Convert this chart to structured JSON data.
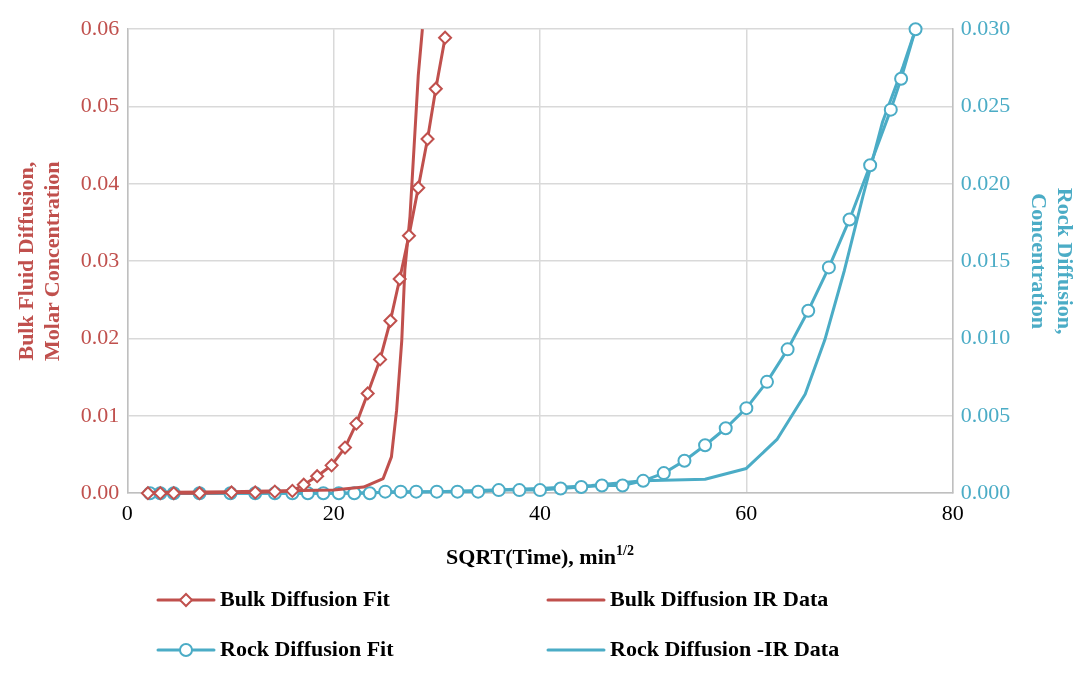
{
  "chart_data": {
    "type": "line",
    "xlabel": "SQRT(Time), min$^{1/2}$",
    "ylabel": "Bulk Fluid Diffusion, Molar Concentration",
    "y2label": "Rock Diffusion, Concentration",
    "xlim": [
      0,
      80
    ],
    "xticks": [
      0,
      20,
      40,
      60,
      80
    ],
    "ylim": [
      0,
      0.06
    ],
    "yticks": [
      {
        "value": 0,
        "label": "0.00"
      },
      {
        "value": 0.01,
        "label": "0.01"
      },
      {
        "value": 0.02,
        "label": "0.02"
      },
      {
        "value": 0.03,
        "label": "0.03"
      },
      {
        "value": 0.04,
        "label": "0.04"
      },
      {
        "value": 0.05,
        "label": "0.05"
      },
      {
        "value": 0.06,
        "label": "0.06"
      }
    ],
    "y2lim": [
      0,
      0.03
    ],
    "y2ticks": [
      {
        "value": 0,
        "label": "0.000"
      },
      {
        "value": 0.005,
        "label": "0.005"
      },
      {
        "value": 0.01,
        "label": "0.010"
      },
      {
        "value": 0.015,
        "label": "0.015"
      },
      {
        "value": 0.02,
        "label": "0.020"
      },
      {
        "value": 0.025,
        "label": "0.025"
      },
      {
        "value": 0.03,
        "label": "0.030"
      }
    ],
    "grid": true,
    "legend": "bottom",
    "series": [
      {
        "name": "Bulk Diffusion Fit",
        "color": "#c0504d",
        "marker": "diamond",
        "x": [
          2.0,
          3.2,
          4.5,
          7.0,
          10.1,
          12.4,
          14.3,
          16.0,
          17.1,
          18.4,
          19.8,
          21.1,
          22.2,
          23.3,
          24.5,
          25.5,
          26.4,
          27.3,
          28.2,
          29.1,
          29.9,
          30.8
        ],
        "values": [
          0,
          0,
          0,
          0,
          0.0001,
          0.0001,
          0.0002,
          0.0003,
          0.0011,
          0.0022,
          0.0036,
          0.0059,
          0.009,
          0.0129,
          0.0173,
          0.0223,
          0.0277,
          0.0333,
          0.0395,
          0.0458,
          0.0523,
          0.0589
        ]
      },
      {
        "name": "Bulk Diffusion IR Data",
        "color": "#c0504d",
        "marker": "none",
        "x": [
          2,
          10,
          20,
          22.9,
          24.8,
          25.6,
          26.1,
          26.6,
          26.9,
          27.4,
          27.8,
          28.2,
          28.6
        ],
        "values": [
          0.0001,
          0.0002,
          0.0004,
          0.0008,
          0.0019,
          0.0047,
          0.0107,
          0.0197,
          0.0289,
          0.0358,
          0.0449,
          0.054,
          0.06
        ]
      },
      {
        "name": "Rock Diffusion Fit",
        "color": "#4bacc6",
        "marker": "circle",
        "axis": "y2",
        "x": [
          2.2,
          3.2,
          4.5,
          7,
          10,
          12.4,
          14.3,
          16,
          17.5,
          19,
          20.5,
          22,
          23.5,
          25,
          26.5,
          28,
          30,
          32,
          34,
          36,
          38,
          40,
          42,
          44,
          46,
          48,
          50,
          52,
          54,
          56,
          58,
          60,
          62,
          64,
          66,
          68,
          70,
          72,
          74,
          75,
          76.4
        ],
        "values": [
          0,
          0,
          0,
          0,
          0,
          0,
          0,
          0,
          0,
          0,
          0,
          0,
          0,
          0.0001,
          0.0001,
          0.0001,
          0.0001,
          0.0001,
          0.0001,
          0.0002,
          0.0002,
          0.0002,
          0.0003,
          0.0004,
          0.0005,
          0.0005,
          0.0008,
          0.0013,
          0.0021,
          0.0031,
          0.0042,
          0.0055,
          0.0072,
          0.0093,
          0.0118,
          0.0146,
          0.0177,
          0.0212,
          0.0248,
          0.0268,
          0.03
        ]
      },
      {
        "name": "Rock Diffusion -IR Data",
        "color": "#4bacc6",
        "marker": "none",
        "axis": "y2",
        "x": [
          2,
          10,
          20,
          30,
          40,
          45,
          50,
          56,
          60,
          63,
          65.7,
          67.6,
          69.5,
          71.3,
          73.2,
          75.2,
          76.4
        ],
        "values": [
          0,
          0,
          0,
          0.0001,
          0.0003,
          0.0005,
          0.0008,
          0.0009,
          0.0016,
          0.0035,
          0.0064,
          0.0099,
          0.0144,
          0.0192,
          0.024,
          0.0276,
          0.03
        ]
      }
    ]
  }
}
